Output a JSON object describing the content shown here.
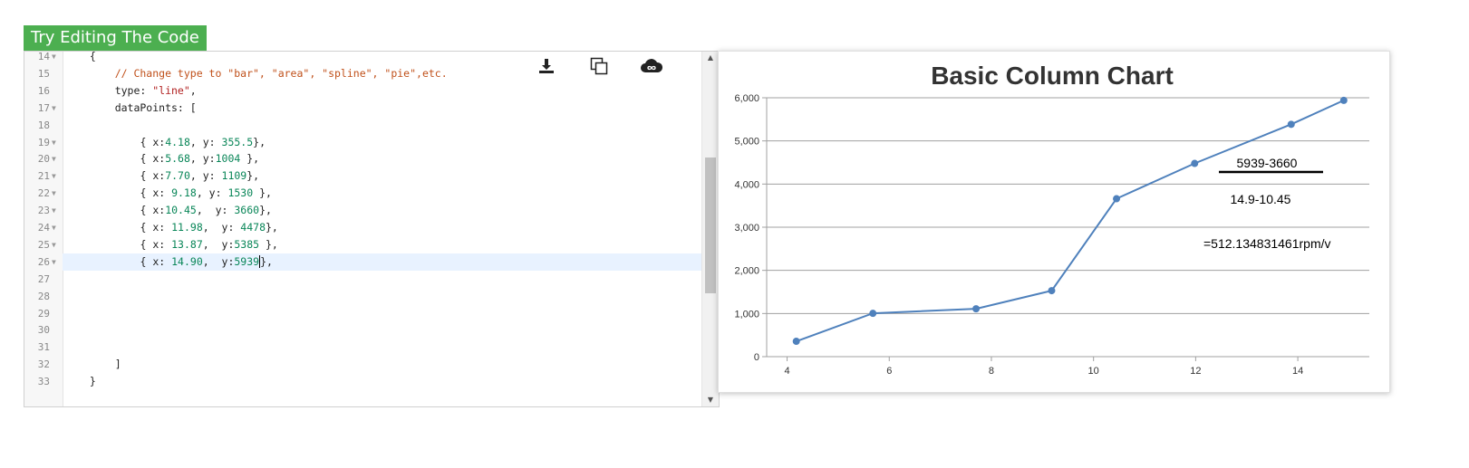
{
  "header": {
    "try_label": "Try Editing The Code"
  },
  "editor": {
    "toolbar": {
      "download_icon": "download-icon",
      "copy_icon": "copy-icon",
      "share_icon": "cloud-infinity-icon"
    },
    "lines": [
      {
        "num": "14",
        "fold": true,
        "indent": 2,
        "tokens": [
          {
            "t": "{",
            "c": ""
          }
        ]
      },
      {
        "num": "15",
        "fold": false,
        "indent": 6,
        "tokens": [
          {
            "t": "// Change type to \"bar\", \"area\", \"spline\", \"pie\",etc.",
            "c": "cmt"
          }
        ]
      },
      {
        "num": "16",
        "fold": false,
        "indent": 6,
        "tokens": [
          {
            "t": "type: ",
            "c": ""
          },
          {
            "t": "\"line\"",
            "c": "str"
          },
          {
            "t": ",",
            "c": ""
          }
        ]
      },
      {
        "num": "17",
        "fold": true,
        "indent": 6,
        "tokens": [
          {
            "t": "dataPoints: [",
            "c": ""
          }
        ]
      },
      {
        "num": "18",
        "fold": false,
        "indent": 0,
        "tokens": []
      },
      {
        "num": "19",
        "fold": true,
        "indent": 10,
        "tokens": [
          {
            "t": "{ x:",
            "c": ""
          },
          {
            "t": "4.18",
            "c": "num"
          },
          {
            "t": ", y: ",
            "c": ""
          },
          {
            "t": "355.5",
            "c": "num"
          },
          {
            "t": "},",
            "c": ""
          }
        ]
      },
      {
        "num": "20",
        "fold": true,
        "indent": 10,
        "tokens": [
          {
            "t": "{ x:",
            "c": ""
          },
          {
            "t": "5.68",
            "c": "num"
          },
          {
            "t": ", y:",
            "c": ""
          },
          {
            "t": "1004",
            "c": "num"
          },
          {
            "t": " },",
            "c": ""
          }
        ]
      },
      {
        "num": "21",
        "fold": true,
        "indent": 10,
        "tokens": [
          {
            "t": "{ x:",
            "c": ""
          },
          {
            "t": "7.70",
            "c": "num"
          },
          {
            "t": ", y: ",
            "c": ""
          },
          {
            "t": "1109",
            "c": "num"
          },
          {
            "t": "},",
            "c": ""
          }
        ]
      },
      {
        "num": "22",
        "fold": true,
        "indent": 10,
        "tokens": [
          {
            "t": "{ x: ",
            "c": ""
          },
          {
            "t": "9.18",
            "c": "num"
          },
          {
            "t": ", y: ",
            "c": ""
          },
          {
            "t": "1530",
            "c": "num"
          },
          {
            "t": " },",
            "c": ""
          }
        ]
      },
      {
        "num": "23",
        "fold": true,
        "indent": 10,
        "tokens": [
          {
            "t": "{ x:",
            "c": ""
          },
          {
            "t": "10.45",
            "c": "num"
          },
          {
            "t": ",  y: ",
            "c": ""
          },
          {
            "t": "3660",
            "c": "num"
          },
          {
            "t": "},",
            "c": ""
          }
        ]
      },
      {
        "num": "24",
        "fold": true,
        "indent": 10,
        "tokens": [
          {
            "t": "{ x: ",
            "c": ""
          },
          {
            "t": "11.98",
            "c": "num"
          },
          {
            "t": ",  y: ",
            "c": ""
          },
          {
            "t": "4478",
            "c": "num"
          },
          {
            "t": "},",
            "c": ""
          }
        ]
      },
      {
        "num": "25",
        "fold": true,
        "indent": 10,
        "tokens": [
          {
            "t": "{ x: ",
            "c": ""
          },
          {
            "t": "13.87",
            "c": "num"
          },
          {
            "t": ",  y:",
            "c": ""
          },
          {
            "t": "5385",
            "c": "num"
          },
          {
            "t": " },",
            "c": ""
          }
        ]
      },
      {
        "num": "26",
        "fold": true,
        "indent": 10,
        "active": true,
        "tokens": [
          {
            "t": "{ x: ",
            "c": ""
          },
          {
            "t": "14.90",
            "c": "num"
          },
          {
            "t": ",  y:",
            "c": ""
          },
          {
            "t": "5939",
            "c": "num"
          },
          {
            "t": "|caret|",
            "c": "caret"
          },
          {
            "t": "},",
            "c": ""
          }
        ]
      },
      {
        "num": "27",
        "fold": false,
        "indent": 0,
        "tokens": []
      },
      {
        "num": "28",
        "fold": false,
        "indent": 0,
        "tokens": []
      },
      {
        "num": "29",
        "fold": false,
        "indent": 0,
        "tokens": []
      },
      {
        "num": "30",
        "fold": false,
        "indent": 0,
        "tokens": []
      },
      {
        "num": "31",
        "fold": false,
        "indent": 0,
        "tokens": []
      },
      {
        "num": "32",
        "fold": false,
        "indent": 6,
        "tokens": [
          {
            "t": "]",
            "c": ""
          }
        ]
      },
      {
        "num": "33",
        "fold": false,
        "indent": 2,
        "tokens": [
          {
            "t": "}",
            "c": ""
          }
        ]
      }
    ],
    "scroll_position": 0.42
  },
  "chart_data": {
    "type": "line",
    "title": "Basic Column Chart",
    "xlabel": "",
    "ylabel": "",
    "xlim": [
      3.6,
      15.4
    ],
    "ylim": [
      0,
      6000
    ],
    "xticks": [
      4,
      6,
      8,
      10,
      12,
      14
    ],
    "yticks": [
      0,
      1000,
      2000,
      3000,
      4000,
      5000,
      6000
    ],
    "ytick_labels": [
      "0",
      "1,000",
      "2,000",
      "3,000",
      "4,000",
      "5,000",
      "6,000"
    ],
    "grid": "horizontal",
    "series_color": "#4f81bc",
    "series": [
      {
        "points": [
          {
            "x": 4.18,
            "y": 355.5
          },
          {
            "x": 5.68,
            "y": 1004
          },
          {
            "x": 7.7,
            "y": 1109
          },
          {
            "x": 9.18,
            "y": 1530
          },
          {
            "x": 10.45,
            "y": 3660
          },
          {
            "x": 11.98,
            "y": 4478
          },
          {
            "x": 13.87,
            "y": 5385
          },
          {
            "x": 14.9,
            "y": 5939
          }
        ]
      }
    ],
    "annotations": {
      "numerator": "5939-3660",
      "denominator": "14.9-10.45",
      "result": "=512.134831461rpm/v"
    }
  }
}
